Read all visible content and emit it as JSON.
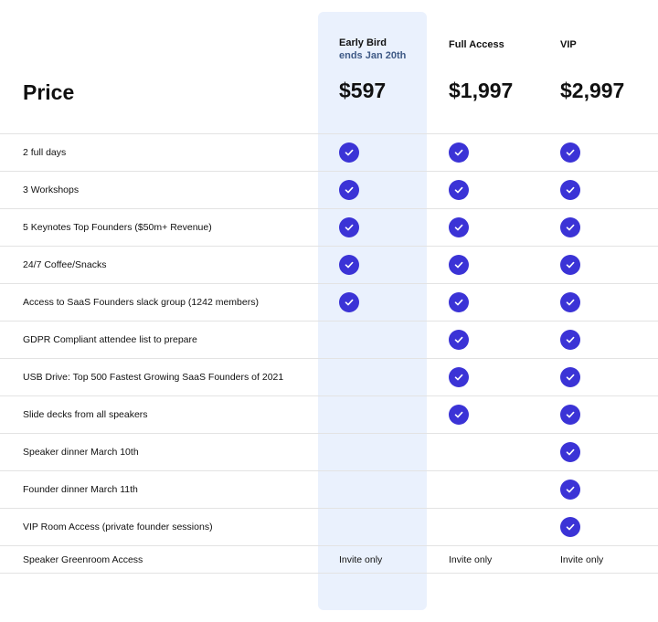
{
  "header": {
    "price_label": "Price",
    "tiers": [
      {
        "name": "Early Bird",
        "subtitle": "ends Jan 20th",
        "price": "$597"
      },
      {
        "name": "Full Access",
        "subtitle": "",
        "price": "$1,997"
      },
      {
        "name": "VIP",
        "subtitle": "",
        "price": "$2,997"
      }
    ]
  },
  "features": [
    {
      "label": "2 full days",
      "included": [
        true,
        true,
        true
      ]
    },
    {
      "label": "3 Workshops",
      "included": [
        true,
        true,
        true
      ]
    },
    {
      "label": "5 Keynotes Top Founders ($50m+ Revenue)",
      "included": [
        true,
        true,
        true
      ]
    },
    {
      "label": "24/7 Coffee/Snacks",
      "included": [
        true,
        true,
        true
      ]
    },
    {
      "label": "Access to SaaS Founders slack group (1242 members)",
      "included": [
        true,
        true,
        true
      ]
    },
    {
      "label": "GDPR Compliant attendee list to prepare",
      "included": [
        false,
        true,
        true
      ]
    },
    {
      "label": "USB Drive: Top 500 Fastest Growing SaaS Founders of 2021",
      "included": [
        false,
        true,
        true
      ]
    },
    {
      "label": "Slide decks from all speakers",
      "included": [
        false,
        true,
        true
      ]
    },
    {
      "label": "Speaker dinner March 10th",
      "included": [
        false,
        false,
        true
      ]
    },
    {
      "label": "Founder dinner March 11th",
      "included": [
        false,
        false,
        true
      ]
    },
    {
      "label": "VIP Room Access (private founder sessions)",
      "included": [
        false,
        false,
        true
      ]
    }
  ],
  "last_row": {
    "label": "Speaker Greenroom Access",
    "values": [
      "Invite only",
      "Invite only",
      "Invite only"
    ]
  },
  "colors": {
    "check": "#3b33d6",
    "highlight": "#eaf1fd",
    "subtitle": "#3f5a86"
  },
  "icons": {
    "check": "check-circle-icon"
  }
}
